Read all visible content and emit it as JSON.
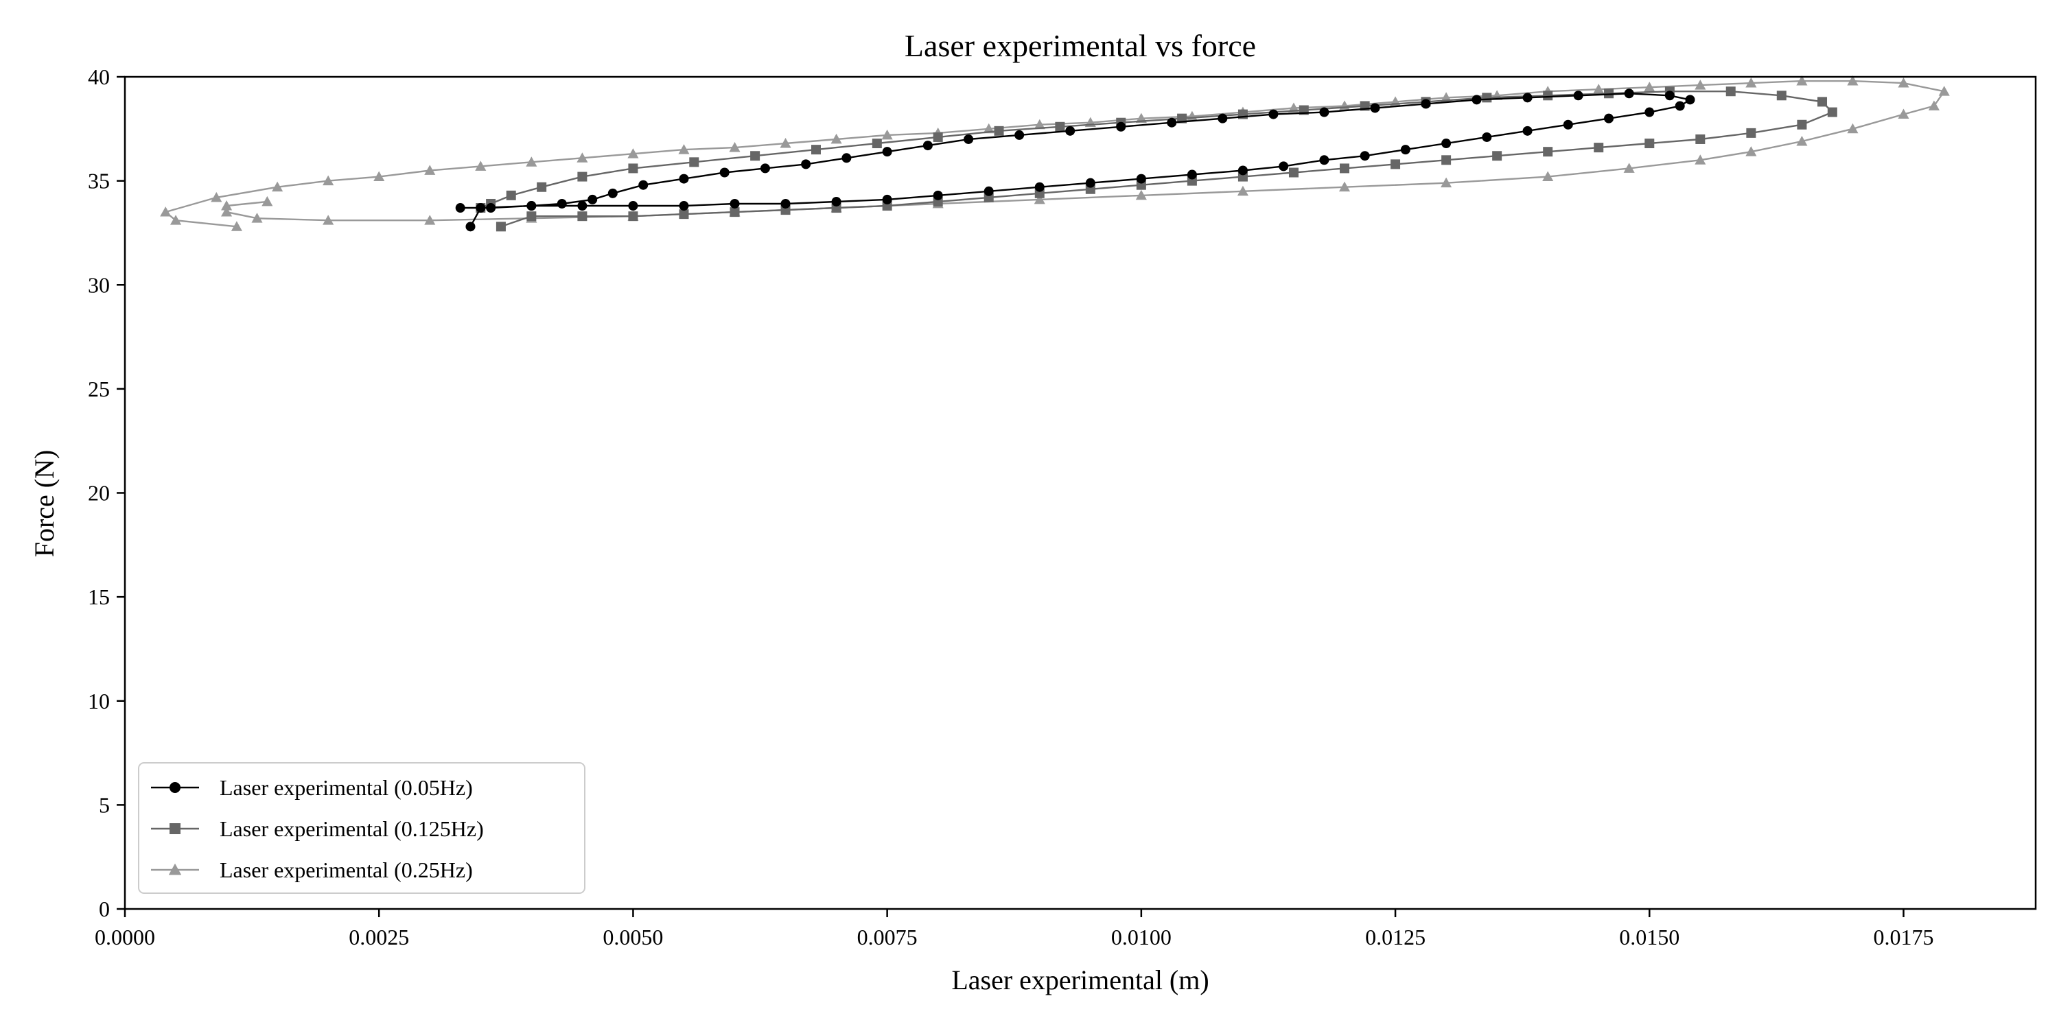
{
  "chart_data": {
    "type": "line",
    "title": "Laser experimental vs force",
    "xlabel": "Laser experimental (m)",
    "ylabel": "Force (N)",
    "xlim": [
      0.0,
      0.0188
    ],
    "ylim": [
      0,
      40
    ],
    "x_ticks": [
      "0.0000",
      "0.0025",
      "0.0050",
      "0.0075",
      "0.0100",
      "0.0125",
      "0.0150",
      "0.0175"
    ],
    "y_ticks": [
      "0",
      "5",
      "10",
      "15",
      "20",
      "25",
      "30",
      "35",
      "40"
    ],
    "grid": false,
    "legend_position": "lower-left",
    "series": [
      {
        "name": "Laser experimental (0.05Hz)",
        "color": "#000000",
        "marker": "circle",
        "points": [
          [
            0.0034,
            32.8
          ],
          [
            0.0035,
            33.7
          ],
          [
            0.004,
            33.8
          ],
          [
            0.0045,
            33.8
          ],
          [
            0.005,
            33.8
          ],
          [
            0.0055,
            33.8
          ],
          [
            0.006,
            33.9
          ],
          [
            0.0065,
            33.9
          ],
          [
            0.007,
            34.0
          ],
          [
            0.0075,
            34.1
          ],
          [
            0.008,
            34.3
          ],
          [
            0.0085,
            34.5
          ],
          [
            0.009,
            34.7
          ],
          [
            0.0095,
            34.9
          ],
          [
            0.01,
            35.1
          ],
          [
            0.0105,
            35.3
          ],
          [
            0.011,
            35.5
          ],
          [
            0.0114,
            35.7
          ],
          [
            0.0118,
            36.0
          ],
          [
            0.0122,
            36.2
          ],
          [
            0.0126,
            36.5
          ],
          [
            0.013,
            36.8
          ],
          [
            0.0134,
            37.1
          ],
          [
            0.0138,
            37.4
          ],
          [
            0.0142,
            37.7
          ],
          [
            0.0146,
            38.0
          ],
          [
            0.015,
            38.3
          ],
          [
            0.0153,
            38.6
          ],
          [
            0.0154,
            38.9
          ],
          [
            0.0152,
            39.1
          ],
          [
            0.0148,
            39.2
          ],
          [
            0.0143,
            39.1
          ],
          [
            0.0138,
            39.0
          ],
          [
            0.0133,
            38.9
          ],
          [
            0.0128,
            38.7
          ],
          [
            0.0123,
            38.5
          ],
          [
            0.0118,
            38.3
          ],
          [
            0.0113,
            38.2
          ],
          [
            0.0108,
            38.0
          ],
          [
            0.0103,
            37.8
          ],
          [
            0.0098,
            37.6
          ],
          [
            0.0093,
            37.4
          ],
          [
            0.0088,
            37.2
          ],
          [
            0.0083,
            37.0
          ],
          [
            0.0079,
            36.7
          ],
          [
            0.0075,
            36.4
          ],
          [
            0.0071,
            36.1
          ],
          [
            0.0067,
            35.8
          ],
          [
            0.0063,
            35.6
          ],
          [
            0.0059,
            35.4
          ],
          [
            0.0055,
            35.1
          ],
          [
            0.0051,
            34.8
          ],
          [
            0.0048,
            34.4
          ],
          [
            0.0046,
            34.1
          ],
          [
            0.0043,
            33.9
          ],
          [
            0.004,
            33.8
          ],
          [
            0.0036,
            33.7
          ],
          [
            0.0033,
            33.7
          ]
        ]
      },
      {
        "name": "Laser experimental (0.125Hz)",
        "color": "#666666",
        "marker": "square",
        "points": [
          [
            0.0037,
            32.8
          ],
          [
            0.004,
            33.3
          ],
          [
            0.0045,
            33.3
          ],
          [
            0.005,
            33.3
          ],
          [
            0.0055,
            33.4
          ],
          [
            0.006,
            33.5
          ],
          [
            0.0065,
            33.6
          ],
          [
            0.007,
            33.7
          ],
          [
            0.0075,
            33.8
          ],
          [
            0.008,
            34.0
          ],
          [
            0.0085,
            34.2
          ],
          [
            0.009,
            34.4
          ],
          [
            0.0095,
            34.6
          ],
          [
            0.01,
            34.8
          ],
          [
            0.0105,
            35.0
          ],
          [
            0.011,
            35.2
          ],
          [
            0.0115,
            35.4
          ],
          [
            0.012,
            35.6
          ],
          [
            0.0125,
            35.8
          ],
          [
            0.013,
            36.0
          ],
          [
            0.0135,
            36.2
          ],
          [
            0.014,
            36.4
          ],
          [
            0.0145,
            36.6
          ],
          [
            0.015,
            36.8
          ],
          [
            0.0155,
            37.0
          ],
          [
            0.016,
            37.3
          ],
          [
            0.0165,
            37.7
          ],
          [
            0.0168,
            38.3
          ],
          [
            0.0167,
            38.8
          ],
          [
            0.0163,
            39.1
          ],
          [
            0.0158,
            39.3
          ],
          [
            0.0152,
            39.3
          ],
          [
            0.0146,
            39.2
          ],
          [
            0.014,
            39.1
          ],
          [
            0.0134,
            39.0
          ],
          [
            0.0128,
            38.8
          ],
          [
            0.0122,
            38.6
          ],
          [
            0.0116,
            38.4
          ],
          [
            0.011,
            38.2
          ],
          [
            0.0104,
            38.0
          ],
          [
            0.0098,
            37.8
          ],
          [
            0.0092,
            37.6
          ],
          [
            0.0086,
            37.4
          ],
          [
            0.008,
            37.1
          ],
          [
            0.0074,
            36.8
          ],
          [
            0.0068,
            36.5
          ],
          [
            0.0062,
            36.2
          ],
          [
            0.0056,
            35.9
          ],
          [
            0.005,
            35.6
          ],
          [
            0.0045,
            35.2
          ],
          [
            0.0041,
            34.7
          ],
          [
            0.0038,
            34.3
          ],
          [
            0.0036,
            33.9
          ],
          [
            0.0035,
            33.7
          ]
        ]
      },
      {
        "name": "Laser experimental (0.25Hz)",
        "color": "#999999",
        "marker": "triangle",
        "points": [
          [
            0.0011,
            32.8
          ],
          [
            0.0005,
            33.1
          ],
          [
            0.0004,
            33.5
          ],
          [
            0.0009,
            34.2
          ],
          [
            0.0015,
            34.7
          ],
          [
            0.002,
            35.0
          ],
          [
            0.0025,
            35.2
          ],
          [
            0.003,
            35.5
          ],
          [
            0.0035,
            35.7
          ],
          [
            0.004,
            35.9
          ],
          [
            0.0045,
            36.1
          ],
          [
            0.005,
            36.3
          ],
          [
            0.0055,
            36.5
          ],
          [
            0.006,
            36.6
          ],
          [
            0.0065,
            36.8
          ],
          [
            0.007,
            37.0
          ],
          [
            0.0075,
            37.2
          ],
          [
            0.008,
            37.3
          ],
          [
            0.0085,
            37.5
          ],
          [
            0.009,
            37.7
          ],
          [
            0.0095,
            37.8
          ],
          [
            0.01,
            38.0
          ],
          [
            0.0105,
            38.1
          ],
          [
            0.011,
            38.3
          ],
          [
            0.0115,
            38.5
          ],
          [
            0.012,
            38.6
          ],
          [
            0.0125,
            38.8
          ],
          [
            0.013,
            39.0
          ],
          [
            0.0135,
            39.1
          ],
          [
            0.014,
            39.3
          ],
          [
            0.0145,
            39.4
          ],
          [
            0.015,
            39.5
          ],
          [
            0.0155,
            39.6
          ],
          [
            0.016,
            39.7
          ],
          [
            0.0165,
            39.8
          ],
          [
            0.017,
            39.8
          ],
          [
            0.0175,
            39.7
          ],
          [
            0.0179,
            39.3
          ],
          [
            0.0178,
            38.6
          ],
          [
            0.0175,
            38.2
          ],
          [
            0.017,
            37.5
          ],
          [
            0.0165,
            36.9
          ],
          [
            0.016,
            36.4
          ],
          [
            0.0155,
            36.0
          ],
          [
            0.0148,
            35.6
          ],
          [
            0.014,
            35.2
          ],
          [
            0.013,
            34.9
          ],
          [
            0.012,
            34.7
          ],
          [
            0.011,
            34.5
          ],
          [
            0.01,
            34.3
          ],
          [
            0.009,
            34.1
          ],
          [
            0.008,
            33.9
          ],
          [
            0.007,
            33.7
          ],
          [
            0.006,
            33.5
          ],
          [
            0.005,
            33.3
          ],
          [
            0.004,
            33.2
          ],
          [
            0.003,
            33.1
          ],
          [
            0.002,
            33.1
          ],
          [
            0.0013,
            33.2
          ],
          [
            0.001,
            33.5
          ],
          [
            0.001,
            33.8
          ],
          [
            0.0014,
            34.0
          ]
        ]
      }
    ]
  }
}
